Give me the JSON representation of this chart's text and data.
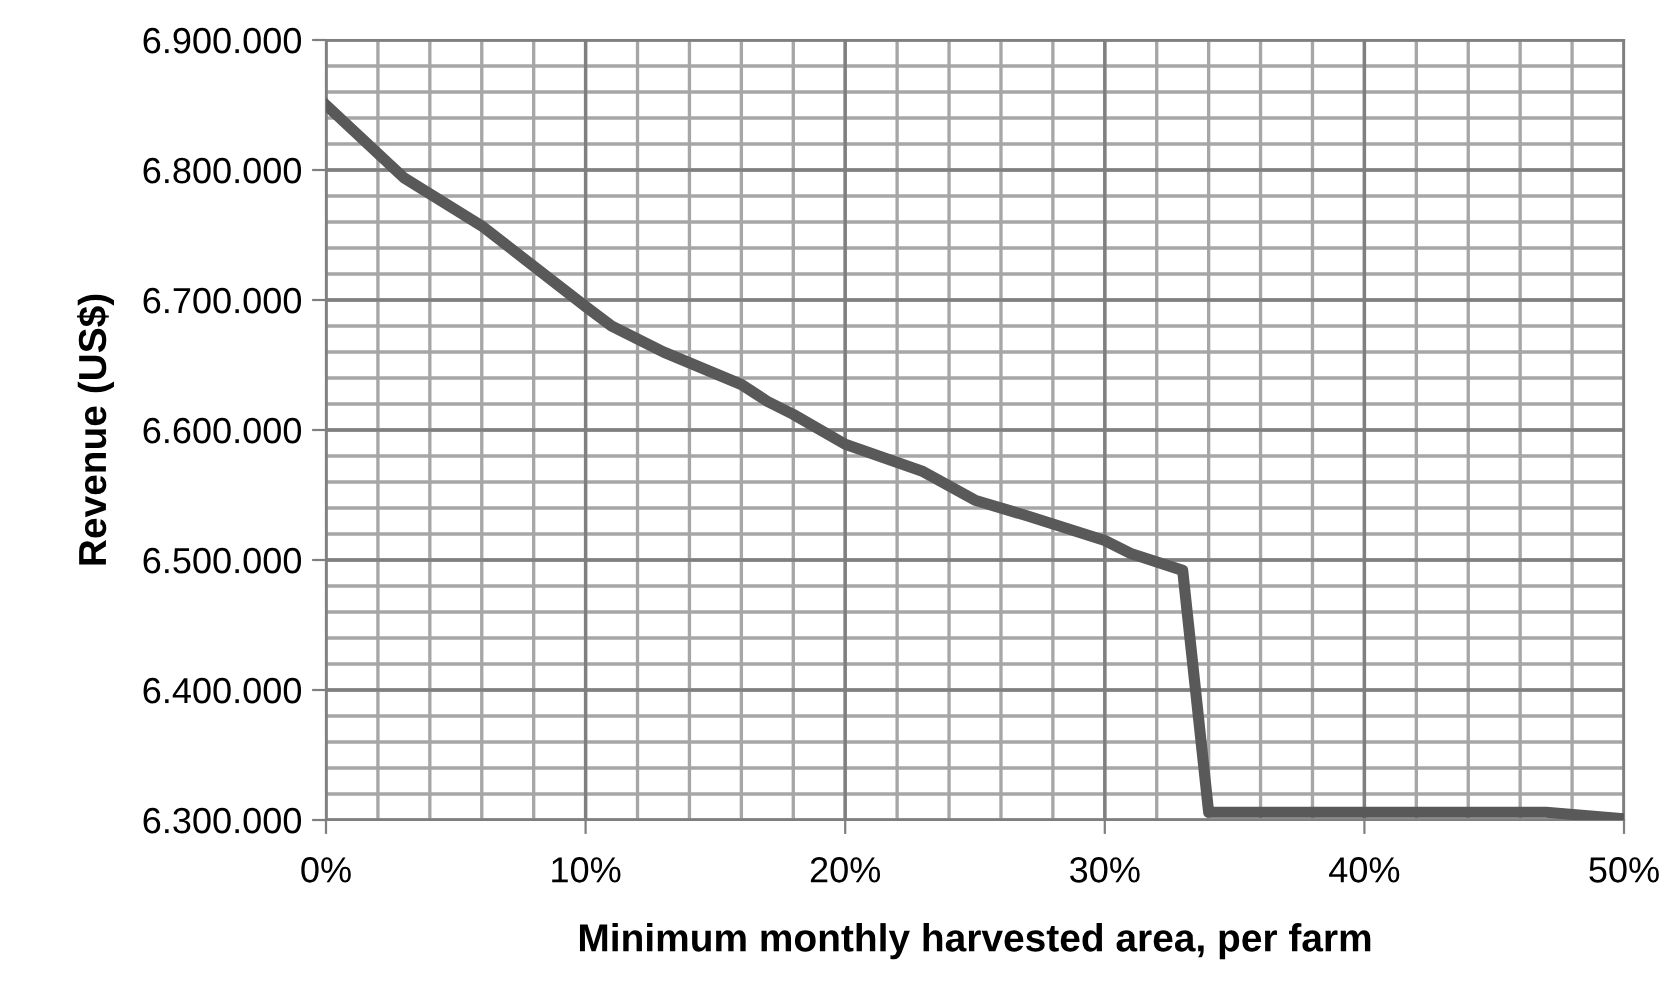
{
  "chart_data": {
    "type": "line",
    "xlabel": "Minimum monthly harvested area, per farm",
    "ylabel": "Revenue (US$)",
    "x": [
      0,
      3,
      6,
      10,
      11,
      13,
      16,
      17,
      18,
      20,
      23,
      25,
      27,
      30,
      31,
      33,
      34,
      40,
      47,
      50
    ],
    "series": [
      {
        "color": "#595959",
        "values": [
          6850000,
          6794000,
          6757000,
          6695000,
          6680000,
          6660000,
          6635000,
          6622000,
          6612000,
          6589000,
          6568000,
          6546000,
          6534000,
          6515000,
          6505000,
          6492000,
          6306000,
          6306000,
          6306000,
          6301000
        ]
      }
    ],
    "xlim": [
      0,
      50
    ],
    "xticks": [
      {
        "value": 0,
        "label": "0%"
      },
      {
        "value": 10,
        "label": "10%"
      },
      {
        "value": 20,
        "label": "20%"
      },
      {
        "value": 30,
        "label": "30%"
      },
      {
        "value": 40,
        "label": "40%"
      },
      {
        "value": 50,
        "label": "50%"
      }
    ],
    "ylim": [
      6300000,
      6900000
    ],
    "yticks": [
      {
        "value": 6300000,
        "label": "6.300.000"
      },
      {
        "value": 6400000,
        "label": "6.400.000"
      },
      {
        "value": 6500000,
        "label": "6.500.000"
      },
      {
        "value": 6600000,
        "label": "6.600.000"
      },
      {
        "value": 6700000,
        "label": "6.700.000"
      },
      {
        "value": 6800000,
        "label": "6.800.000"
      },
      {
        "value": 6900000,
        "label": "6.900.000"
      }
    ],
    "grid": true,
    "marker": "none",
    "line_style": "solid",
    "legend": false
  }
}
